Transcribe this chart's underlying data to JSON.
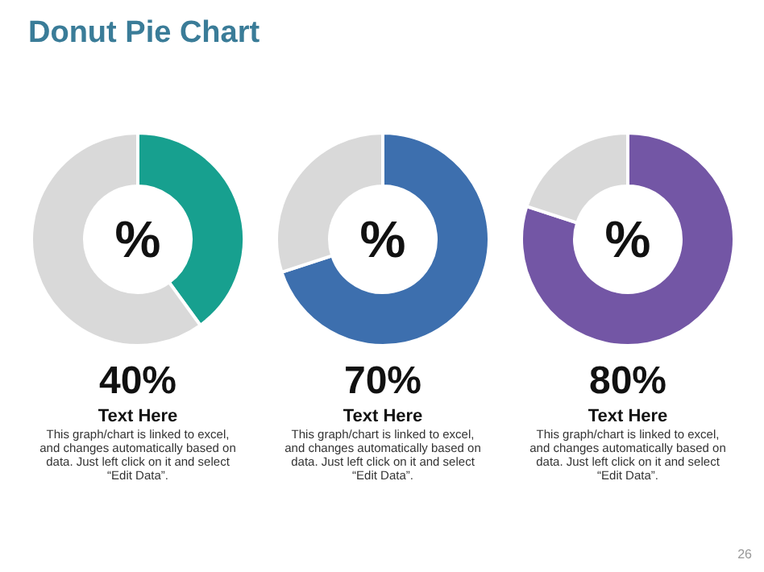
{
  "chart_data": [
    {
      "type": "donut",
      "title": "Donut Pie Chart",
      "categories": [
        null,
        null
      ],
      "values": [
        40,
        60
      ],
      "colors": [
        "#17a08f",
        "#d9d9d9"
      ],
      "annotations": [
        "%",
        "40%",
        "Text Here",
        "This graph/chart is linked to excel, and changes automatically based on data. Just left click on it and select “Edit Data”."
      ]
    },
    {
      "type": "donut",
      "categories": [
        null,
        null
      ],
      "values": [
        70,
        30
      ],
      "colors": [
        "#3d6fae",
        "#d9d9d9"
      ],
      "annotations": [
        "%",
        "70%",
        "Text Here",
        "This graph/chart is linked to excel, and changes automatically based on data. Just left click on it and select “Edit Data”."
      ]
    },
    {
      "type": "donut",
      "categories": [
        null,
        null
      ],
      "values": [
        80,
        20
      ],
      "colors": [
        "#7356a5",
        "#d9d9d9"
      ],
      "annotations": [
        "%",
        "80%",
        "Text Here",
        "This graph/chart is linked to excel, and changes automatically based on data. Just left click on it and select “Edit Data”.",
        "26"
      ]
    }
  ]
}
